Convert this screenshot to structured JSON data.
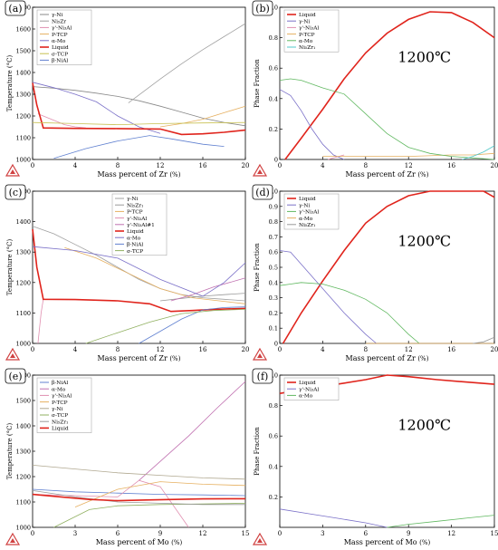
{
  "chart_data": [
    {
      "panel": "(a)",
      "type": "line",
      "title": "",
      "xlabel": "Mass percent of Zr",
      "xunit": "(%)",
      "ylabel": "Temperature (°C)",
      "xlim": [
        0,
        20
      ],
      "ylim": [
        1000,
        1700
      ],
      "xticks": [
        0,
        4,
        8,
        12,
        16,
        20
      ],
      "yticks": [
        1000,
        1100,
        1200,
        1300,
        1400,
        1500,
        1600,
        1700
      ],
      "legend": "top-left",
      "series": [
        {
          "name": "γ-Ni",
          "color": "#888888",
          "x": [
            0,
            2,
            4,
            6,
            8,
            10,
            12,
            14,
            16,
            18,
            20
          ],
          "y": [
            1335,
            1328,
            1318,
            1305,
            1290,
            1270,
            1245,
            1218,
            1190,
            1170,
            1155
          ]
        },
        {
          "name": "Ni₅Zr",
          "color": "#a0a0a0",
          "x": [
            9,
            12,
            14,
            16,
            18,
            20
          ],
          "y": [
            1260,
            1370,
            1440,
            1505,
            1565,
            1625
          ]
        },
        {
          "name": "γ'-Ni₃Al",
          "color": "#e08fb0",
          "x": [
            0.5,
            2,
            3,
            4,
            5
          ],
          "y": [
            1210,
            1180,
            1160,
            1150,
            1145
          ]
        },
        {
          "name": "P-TCP",
          "color": "#e6b060",
          "x": [
            12,
            14,
            16,
            18,
            20
          ],
          "y": [
            1150,
            1165,
            1185,
            1215,
            1245
          ]
        },
        {
          "name": "α-Mo",
          "color": "#7a70c8",
          "x": [
            0,
            2,
            4,
            6,
            8,
            10,
            12
          ],
          "y": [
            1355,
            1330,
            1300,
            1265,
            1200,
            1150,
            1120
          ]
        },
        {
          "name": "Liquid",
          "color": "#e0241c",
          "x": [
            0,
            0.4,
            1,
            4,
            8,
            12,
            14,
            16,
            18,
            20
          ],
          "y": [
            1352,
            1250,
            1145,
            1143,
            1142,
            1140,
            1115,
            1118,
            1125,
            1135
          ]
        },
        {
          "name": "σ-TCP",
          "color": "#c8c050",
          "x": [
            0,
            4,
            8,
            12,
            16,
            20
          ],
          "y": [
            1170,
            1165,
            1160,
            1165,
            1168,
            1170
          ]
        },
        {
          "name": "β-NiAl",
          "color": "#6080d0",
          "x": [
            2,
            5,
            8,
            11,
            13,
            16,
            18
          ],
          "y": [
            1005,
            1050,
            1085,
            1110,
            1095,
            1070,
            1060
          ]
        }
      ]
    },
    {
      "panel": "(b)",
      "type": "line",
      "title": "",
      "annotation": "1200℃",
      "xlabel": "Mass percent of Zr",
      "xunit": "(%)",
      "ylabel": "Phase Fraction",
      "xlim": [
        0,
        20
      ],
      "ylim": [
        0,
        1.0
      ],
      "xticks": [
        0,
        4,
        8,
        12,
        16,
        20
      ],
      "yticks": [
        0,
        0.2,
        0.4,
        0.6,
        0.8,
        1.0
      ],
      "legend": "top-left",
      "series": [
        {
          "name": "Liquid",
          "color": "#e0241c",
          "x": [
            0.5,
            2,
            4,
            6,
            8,
            10,
            12,
            14,
            16,
            18,
            20
          ],
          "y": [
            0.0,
            0.14,
            0.33,
            0.53,
            0.7,
            0.83,
            0.92,
            0.97,
            0.965,
            0.9,
            0.8
          ]
        },
        {
          "name": "γ-Ni",
          "color": "#7a70c8",
          "x": [
            0,
            1,
            2,
            3,
            4,
            5,
            6
          ],
          "y": [
            0.46,
            0.42,
            0.32,
            0.2,
            0.1,
            0.03,
            0.0
          ]
        },
        {
          "name": "γ'-Ni₃Al",
          "color": "#e08fb0",
          "x": [
            4.5,
            5,
            5.5,
            6
          ],
          "y": [
            0.0,
            0.01,
            0.02,
            0.03
          ]
        },
        {
          "name": "P-TCP",
          "color": "#e6b060",
          "x": [
            4,
            8,
            12,
            16,
            18,
            20
          ],
          "y": [
            0.02,
            0.02,
            0.02,
            0.03,
            0.03,
            0.04
          ]
        },
        {
          "name": "α-Mo",
          "color": "#60b860",
          "x": [
            0,
            1,
            2,
            4,
            6,
            8,
            10,
            12,
            14,
            16,
            18,
            20
          ],
          "y": [
            0.52,
            0.53,
            0.52,
            0.47,
            0.43,
            0.3,
            0.17,
            0.08,
            0.04,
            0.02,
            0.01,
            0.0
          ]
        },
        {
          "name": "Ni₅Zr₁",
          "color": "#50c8c8",
          "x": [
            17,
            18,
            19,
            20
          ],
          "y": [
            0.0,
            0.02,
            0.05,
            0.09
          ]
        }
      ]
    },
    {
      "panel": "(c)",
      "type": "line",
      "title": "",
      "xlabel": "Mass percent of Zr",
      "xunit": "(%)",
      "ylabel": "Temperature (°C)",
      "xlim": [
        0,
        20
      ],
      "ylim": [
        1000,
        1500
      ],
      "xticks": [
        0,
        4,
        8,
        12,
        16,
        20
      ],
      "yticks": [
        1000,
        1100,
        1200,
        1300,
        1400,
        1500
      ],
      "legend": "top-right",
      "series": [
        {
          "name": "γ-Ni",
          "color": "#a0a0a0",
          "x": [
            0,
            2,
            4,
            6,
            8,
            10,
            12,
            14,
            16,
            18,
            20
          ],
          "y": [
            1385,
            1360,
            1325,
            1290,
            1250,
            1210,
            1180,
            1160,
            1150,
            1145,
            1140
          ]
        },
        {
          "name": "Ni₅Zr₁",
          "color": "#999999",
          "x": [
            12,
            14,
            16,
            18,
            20
          ],
          "y": [
            1140,
            1148,
            1155,
            1160,
            1165
          ]
        },
        {
          "name": "P-TCP",
          "color": "#e6b060",
          "x": [
            3,
            6,
            9,
            12,
            15,
            18,
            20
          ],
          "y": [
            1315,
            1280,
            1230,
            1180,
            1150,
            1138,
            1130
          ]
        },
        {
          "name": "γ'-Ni₃Al",
          "color": "#e08fb0",
          "x": [
            0.5,
            0.8,
            1
          ],
          "y": [
            1000,
            1100,
            1145
          ]
        },
        {
          "name": "γ'-Ni₃Al#1",
          "color": "#c070b0",
          "x": [
            13,
            15,
            17,
            20
          ],
          "y": [
            1140,
            1160,
            1185,
            1215
          ]
        },
        {
          "name": "Liquid",
          "color": "#e0241c",
          "x": [
            0,
            0.4,
            1,
            4,
            8,
            11,
            13,
            15,
            17,
            20
          ],
          "y": [
            1375,
            1250,
            1145,
            1144,
            1140,
            1130,
            1105,
            1108,
            1112,
            1115
          ]
        },
        {
          "name": "α-Mo",
          "color": "#7a70c8",
          "x": [
            0,
            4,
            8,
            12,
            16,
            18,
            20
          ],
          "y": [
            1318,
            1305,
            1280,
            1210,
            1155,
            1200,
            1265
          ]
        },
        {
          "name": "β-NiAl",
          "color": "#6080d0",
          "x": [
            10,
            12,
            14,
            16,
            18,
            20
          ],
          "y": [
            1000,
            1040,
            1080,
            1110,
            1118,
            1120
          ]
        },
        {
          "name": "σ-TCP",
          "color": "#90b060",
          "x": [
            5,
            8,
            11,
            14,
            17,
            20
          ],
          "y": [
            1000,
            1035,
            1070,
            1098,
            1108,
            1112
          ]
        }
      ]
    },
    {
      "panel": "(d)",
      "type": "line",
      "title": "",
      "annotation": "1200℃",
      "xlabel": "Mass percent of Zr",
      "xunit": "(%)",
      "ylabel": "Phase Fraction",
      "xlim": [
        0,
        20
      ],
      "ylim": [
        0,
        1.0
      ],
      "xticks": [
        0,
        4,
        8,
        12,
        16,
        20
      ],
      "yticks": [
        0,
        0.1,
        0.2,
        0.3,
        0.4,
        0.5,
        0.6,
        0.7,
        0.8,
        0.9,
        1.0
      ],
      "legend": "top-left",
      "series": [
        {
          "name": "Liquid",
          "color": "#e0241c",
          "x": [
            0.3,
            2,
            4,
            6,
            8,
            10,
            12,
            14,
            16,
            18,
            19,
            20
          ],
          "y": [
            0.0,
            0.2,
            0.41,
            0.61,
            0.79,
            0.9,
            0.97,
            1.0,
            1.0,
            1.0,
            1.0,
            0.96
          ]
        },
        {
          "name": "γ-Ni",
          "color": "#7a70c8",
          "x": [
            0,
            1,
            2,
            4,
            6,
            8,
            9
          ],
          "y": [
            0.61,
            0.6,
            0.52,
            0.36,
            0.2,
            0.06,
            0.0
          ]
        },
        {
          "name": "γ'-Ni₃Al",
          "color": "#60b860",
          "x": [
            0,
            1,
            2,
            4,
            6,
            8,
            10,
            12,
            13
          ],
          "y": [
            0.38,
            0.39,
            0.4,
            0.39,
            0.35,
            0.29,
            0.2,
            0.06,
            0.0
          ]
        },
        {
          "name": "α-Mo",
          "color": "#e6b060",
          "x": [
            8,
            12,
            16,
            20
          ],
          "y": [
            0.0,
            0.0,
            0.0,
            0.0
          ]
        },
        {
          "name": "Ni₅Zr₁",
          "color": "#999999",
          "x": [
            18,
            19,
            20
          ],
          "y": [
            0.0,
            0.01,
            0.04
          ]
        }
      ]
    },
    {
      "panel": "(e)",
      "type": "line",
      "title": "",
      "xlabel": "Mass percent of Mo",
      "xunit": "(%)",
      "ylabel": "Temperature (°C)",
      "xlim": [
        0,
        15
      ],
      "ylim": [
        1000,
        1600
      ],
      "xticks": [
        0,
        3,
        6,
        9,
        12,
        15
      ],
      "yticks": [
        1000,
        1100,
        1200,
        1300,
        1400,
        1500,
        1600
      ],
      "legend": "top-left",
      "series": [
        {
          "name": "β-NiAl",
          "color": "#6080d0",
          "x": [
            0,
            3,
            6,
            9,
            12,
            15
          ],
          "y": [
            1150,
            1140,
            1135,
            1130,
            1128,
            1125
          ]
        },
        {
          "name": "α-Mo",
          "color": "#c070b0",
          "x": [
            7.5,
            9,
            11,
            13,
            15
          ],
          "y": [
            1185,
            1260,
            1360,
            1470,
            1575
          ]
        },
        {
          "name": "γ'-Ni₃Al",
          "color": "#e08fb0",
          "x": [
            0,
            3,
            6,
            7.5,
            9,
            11
          ],
          "y": [
            1130,
            1125,
            1120,
            1185,
            1160,
            1000
          ]
        },
        {
          "name": "P-TCP",
          "color": "#e6b060",
          "x": [
            3,
            6,
            9,
            12,
            15
          ],
          "y": [
            1080,
            1150,
            1180,
            1170,
            1165
          ]
        },
        {
          "name": "γ-Ni",
          "color": "#b0a890",
          "x": [
            0,
            3,
            6,
            9,
            12,
            15
          ],
          "y": [
            1245,
            1230,
            1215,
            1205,
            1195,
            1190
          ]
        },
        {
          "name": "σ-TCP",
          "color": "#90b060",
          "x": [
            1.5,
            4,
            6,
            9,
            12,
            15
          ],
          "y": [
            1000,
            1070,
            1085,
            1090,
            1092,
            1095
          ]
        },
        {
          "name": "Ni₅Zr₁",
          "color": "#999999",
          "x": [
            0,
            3,
            6,
            9,
            12,
            15
          ],
          "y": [
            1145,
            1120,
            1100,
            1095,
            1090,
            1090
          ]
        },
        {
          "name": "Liquid",
          "color": "#e0241c",
          "x": [
            0,
            2,
            4,
            6,
            8,
            10,
            12,
            15
          ],
          "y": [
            1130,
            1120,
            1110,
            1105,
            1108,
            1110,
            1112,
            1113
          ]
        }
      ]
    },
    {
      "panel": "(f)",
      "type": "line",
      "title": "",
      "annotation": "1200℃",
      "xlabel": "Mass percent of Mo",
      "xunit": "(%)",
      "ylabel": "Phase Fraction",
      "xlim": [
        0,
        15
      ],
      "ylim": [
        0,
        1.0
      ],
      "xticks": [
        0,
        3,
        6,
        9,
        12,
        15
      ],
      "yticks": [
        0.2,
        0.4,
        0.6,
        0.8,
        1.0
      ],
      "legend": "top-left",
      "series": [
        {
          "name": "Liquid",
          "color": "#e0241c",
          "x": [
            0,
            2,
            4,
            6,
            7.5,
            9,
            11,
            13,
            15
          ],
          "y": [
            0.88,
            0.91,
            0.94,
            0.97,
            1.0,
            0.99,
            0.97,
            0.955,
            0.94
          ]
        },
        {
          "name": "γ'-Ni₃Al",
          "color": "#7a70c8",
          "x": [
            0,
            2,
            4,
            6,
            7.5
          ],
          "y": [
            0.12,
            0.09,
            0.06,
            0.03,
            0.0
          ]
        },
        {
          "name": "α-Mo",
          "color": "#60b860",
          "x": [
            7.5,
            9,
            11,
            13,
            15
          ],
          "y": [
            0.0,
            0.02,
            0.04,
            0.06,
            0.08
          ]
        }
      ]
    }
  ]
}
